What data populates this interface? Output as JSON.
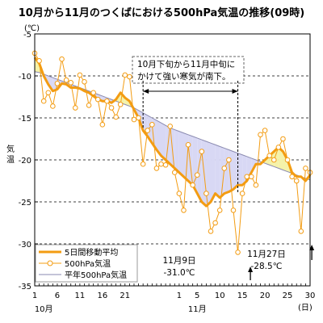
{
  "chart_data": {
    "type": "line",
    "title": "10月から11月のつくばにおける500hPa気温の推移(09時)",
    "ylabel": "気温",
    "yunit": "(℃)",
    "xunit": "(日)",
    "ylim": [
      -35,
      -5
    ],
    "yticks": [
      -5,
      -10,
      -15,
      -20,
      -25,
      -30,
      -35
    ],
    "x_index_range": [
      1,
      61
    ],
    "xticks": [
      {
        "index": 1,
        "label": "1"
      },
      {
        "index": 6,
        "label": "6"
      },
      {
        "index": 11,
        "label": "11"
      },
      {
        "index": 16,
        "label": "16"
      },
      {
        "index": 21,
        "label": "21"
      },
      {
        "index": 33,
        "label": "1"
      },
      {
        "index": 37,
        "label": "5"
      },
      {
        "index": 42,
        "label": "10"
      },
      {
        "index": 47,
        "label": "15"
      },
      {
        "index": 52,
        "label": "20"
      },
      {
        "index": 57,
        "label": "25"
      },
      {
        "index": 62,
        "label": "30"
      }
    ],
    "month_labels": [
      {
        "index": 3,
        "label": "10月"
      },
      {
        "index": 37,
        "label": "11月"
      }
    ],
    "grid": {
      "horizontal_dashed": true
    },
    "legend": {
      "position": "bottom-left",
      "entries": [
        {
          "name": "5日間移動平均",
          "key": "moving_avg"
        },
        {
          "name": "500hPa気温",
          "key": "observed"
        },
        {
          "name": "平年500hPa気温",
          "key": "normal"
        }
      ]
    },
    "series": [
      {
        "name": "500hPa気温",
        "key": "observed",
        "color": "#f39c12",
        "values": [
          -7.3,
          -8.2,
          -13.0,
          -12.0,
          -13.6,
          -10.9,
          -8.0,
          -10.5,
          -10.8,
          -13.8,
          -9.9,
          -10.7,
          -13.5,
          -12.0,
          -12.8,
          -15.8,
          -13.0,
          -13.8,
          -14.9,
          -13.4,
          -9.9,
          -10.1,
          -15.2,
          -15.0,
          -20.5,
          -16.5,
          -15.8,
          -21.0,
          -20.5,
          -20.6,
          -16.0,
          -21.5,
          -24.0,
          -26.0,
          -18.2,
          -23.0,
          -21.8,
          -19.0,
          -24.0,
          -28.5,
          -27.5,
          -26.0,
          -21.0,
          -20.0,
          -26.0,
          -31.0,
          -24.0,
          -22.0,
          -22.0,
          -23.0,
          -17.0,
          -16.5,
          -19.5,
          -20.0,
          -18.5,
          -17.5,
          -20.0,
          -22.0,
          -22.5,
          -28.5,
          -21.0,
          -21.5
        ]
      },
      {
        "name": "5日間移動平均",
        "key": "moving_avg",
        "color": "#f39c12",
        "values": [
          -7.8,
          -8.5,
          -10.0,
          -11.0,
          -11.8,
          -11.6,
          -10.9,
          -11.0,
          -11.4,
          -11.4,
          -11.5,
          -11.8,
          -12.0,
          -12.4,
          -12.8,
          -13.0,
          -13.0,
          -13.2,
          -12.8,
          -12.0,
          -12.6,
          -13.0,
          -14.0,
          -15.0,
          -16.5,
          -17.2,
          -18.0,
          -18.8,
          -19.5,
          -20.0,
          -20.5,
          -21.0,
          -21.5,
          -22.0,
          -22.5,
          -23.0,
          -24.0,
          -25.0,
          -25.5,
          -25.0,
          -24.0,
          -24.5,
          -24.0,
          -23.8,
          -23.5,
          -23.0,
          -23.0,
          -22.5,
          -21.5,
          -20.5,
          -20.5,
          -20.0,
          -19.5,
          -19.0,
          -18.5,
          -19.0,
          -20.0,
          -21.5,
          -22.0,
          -22.0,
          -22.5,
          -21.8
        ]
      },
      {
        "name": "平年500hPa気温",
        "key": "normal",
        "color": "#8a8ab0",
        "values": [
          -9.5,
          -9.6,
          -9.8,
          -10.0,
          -10.2,
          -10.4,
          -10.6,
          -10.8,
          -11.0,
          -11.2,
          -11.4,
          -11.6,
          -11.8,
          -12.0,
          -12.2,
          -12.4,
          -12.6,
          -12.8,
          -13.0,
          -13.2,
          -13.4,
          -13.6,
          -13.8,
          -14.1,
          -14.4,
          -14.7,
          -15.0,
          -15.3,
          -15.6,
          -15.9,
          -16.2,
          -16.4,
          -16.6,
          -16.8,
          -17.0,
          -17.2,
          -17.4,
          -17.6,
          -17.8,
          -18.0,
          -18.2,
          -18.4,
          -18.6,
          -18.8,
          -19.0,
          -19.2,
          -19.4,
          -19.6,
          -19.8,
          -20.0,
          -20.2,
          -20.4,
          -20.6,
          -20.8,
          -21.0,
          -21.2,
          -21.4,
          -21.6,
          -21.8,
          -22.0,
          -22.2,
          -22.4
        ]
      }
    ],
    "shading": {
      "cold_color": "#d8d8f4",
      "warm_color": "#f5f2a8"
    },
    "annotations": {
      "box_text": [
        "10月下旬から11月中旬に",
        "かけて強い寒気が南下。"
      ],
      "period_index_range": [
        25,
        46
      ],
      "min1_lines": [
        "11月9日",
        "-31.0℃"
      ],
      "min1_index": 46,
      "min2_lines": [
        "11月27日",
        "-28.5℃"
      ],
      "min2_index": 60
    }
  }
}
